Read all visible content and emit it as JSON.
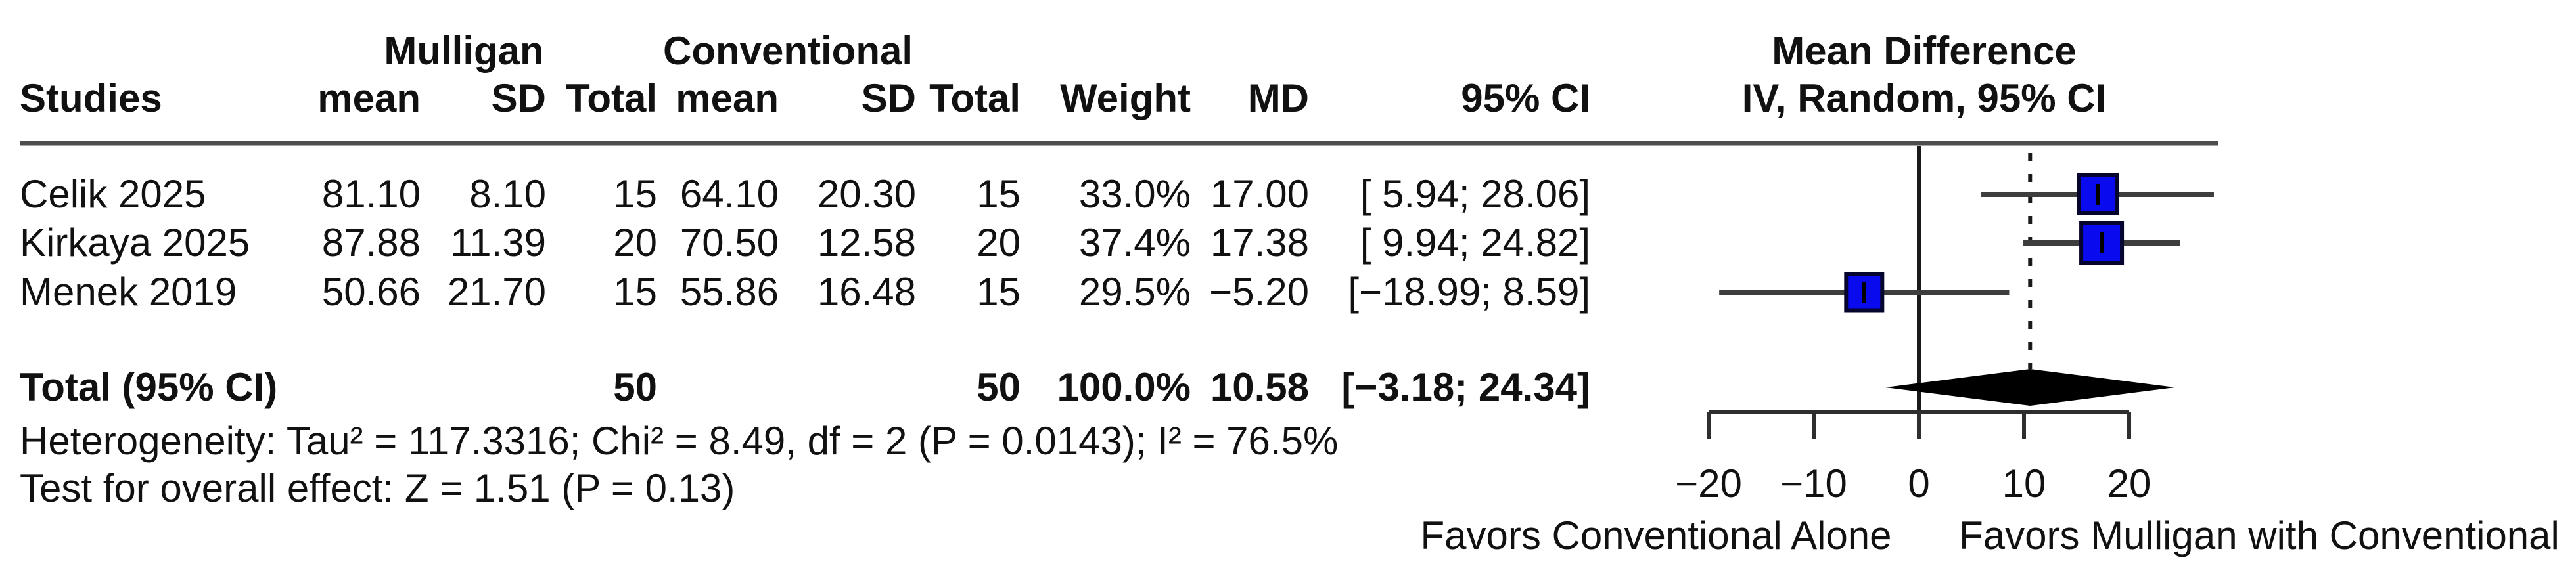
{
  "table": {
    "studies_header": "Studies",
    "group_headers": {
      "mulligan": "Mulligan",
      "conventional": "Conventional"
    },
    "column_headers": {
      "mean1": "mean",
      "sd1": "SD",
      "n1": "Total",
      "mean2": "mean",
      "sd2": "SD",
      "n2": "Total",
      "weight": "Weight",
      "md": "MD",
      "ci": "95% CI"
    },
    "rows": [
      {
        "name": "Celik 2025",
        "mean1": "81.10",
        "sd1": "8.10",
        "n1": "15",
        "mean2": "64.10",
        "sd2": "20.30",
        "n2": "15",
        "weight": "33.0%",
        "md": "17.00",
        "ci": "[ 5.94; 28.06]"
      },
      {
        "name": "Kirkaya 2025",
        "mean1": "87.88",
        "sd1": "11.39",
        "n1": "20",
        "mean2": "70.50",
        "sd2": "12.58",
        "n2": "20",
        "weight": "37.4%",
        "md": "17.38",
        "ci": "[ 9.94; 24.82]"
      },
      {
        "name": "Menek 2019",
        "mean1": "50.66",
        "sd1": "21.70",
        "n1": "15",
        "mean2": "55.86",
        "sd2": "16.48",
        "n2": "15",
        "weight": "29.5%",
        "md": "−5.20",
        "ci": "[−18.99; 8.59]"
      }
    ],
    "total_row": {
      "name": "Total (95% CI)",
      "n1": "50",
      "n2": "50",
      "weight": "100.0%",
      "md": "10.58",
      "ci": "[−3.18; 24.34]"
    }
  },
  "plot": {
    "header_line1": "Mean Difference",
    "header_line2": "IV, Random, 95% CI",
    "favors_left": "Favors Conventional Alone",
    "favors_right": "Favors Mulligan with Conventional",
    "colors": {
      "square_fill": "#0a0aee",
      "square_border": "#05052e",
      "ci_line": "#3d3d3d",
      "diamond": "#000000",
      "axis": "#2e2e2e",
      "rule": "#4d4d4d",
      "zero_line": "#1a1a1a",
      "dashed_line": "#1a1a1a"
    }
  },
  "footer": {
    "heterogeneity": "Heterogeneity: Tau² = 117.3316; Chi² = 8.49, df = 2 (P = 0.0143); I² = 76.5%",
    "overall_effect": "Test for overall effect: Z = 1.51 (P = 0.13)"
  },
  "chart_data": {
    "type": "forest",
    "effect_measure": "Mean Difference",
    "model": "IV, Random, 95% CI",
    "x_ticks": [
      -20,
      -10,
      0,
      10,
      20
    ],
    "xlim": [
      -20,
      20
    ],
    "zero_line": 0,
    "dashed_line_at": 10.58,
    "studies": [
      {
        "name": "Celik 2025",
        "md": 17.0,
        "ci_low": 5.94,
        "ci_high": 28.06,
        "weight_pct": 33.0
      },
      {
        "name": "Kirkaya 2025",
        "md": 17.38,
        "ci_low": 9.94,
        "ci_high": 24.82,
        "weight_pct": 37.4
      },
      {
        "name": "Menek 2019",
        "md": -5.2,
        "ci_low": -18.99,
        "ci_high": 8.59,
        "weight_pct": 29.5
      }
    ],
    "pooled": {
      "label": "Total (95% CI)",
      "md": 10.58,
      "ci_low": -3.18,
      "ci_high": 24.34,
      "weight_pct": 100.0
    }
  }
}
